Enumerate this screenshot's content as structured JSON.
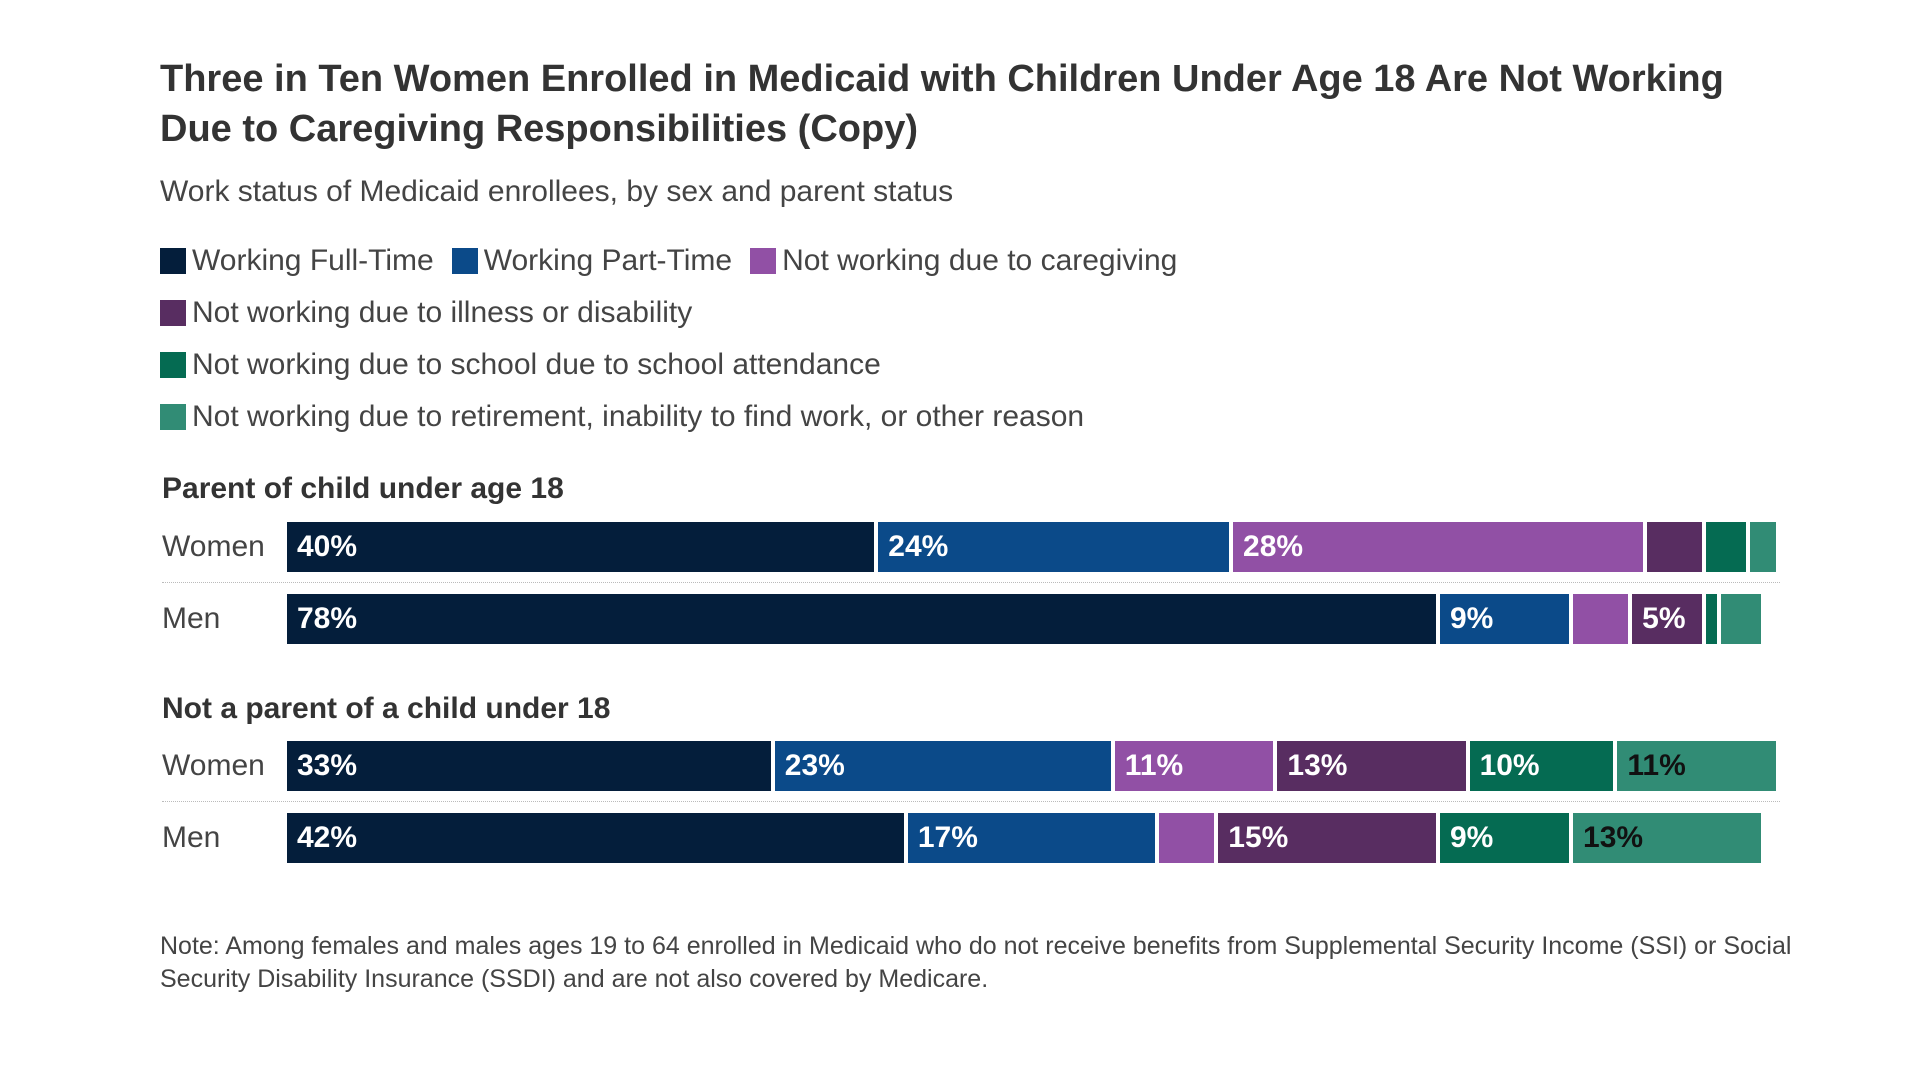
{
  "chart_data": {
    "type": "bar",
    "orientation": "horizontal",
    "stacked": true,
    "title": "Three in Ten Women Enrolled in Medicaid with Children Under Age 18 Are Not Working Due to Caregiving Responsibilities (Copy)",
    "subtitle": "Work status of Medicaid enrollees, by sex and parent status",
    "legend_position": "top-left",
    "series": [
      {
        "name": "Working Full-Time",
        "color": "#041e3b"
      },
      {
        "name": "Working Part-Time",
        "color": "#0b4a89"
      },
      {
        "name": "Not working due to caregiving",
        "color": "#9150a5"
      },
      {
        "name": "Not working due to illness or disability",
        "color": "#582d61"
      },
      {
        "name": "Not working due to school due to school attendance",
        "color": "#056b52"
      },
      {
        "name": "Not working due to retirement, inability to find work, or other reason",
        "color": "#318c75"
      }
    ],
    "groups": [
      {
        "title": "Parent of child under age 18",
        "rows": [
          {
            "label": "Women",
            "values": [
              40,
              24,
              28,
              4,
              3,
              2
            ],
            "labels": [
              "40%",
              "24%",
              "28%",
              "",
              "",
              ""
            ]
          },
          {
            "label": "Men",
            "values": [
              78,
              9,
              4,
              5,
              1,
              3
            ],
            "labels": [
              "78%",
              "9%",
              "",
              "5%",
              "",
              ""
            ]
          }
        ]
      },
      {
        "title": "Not a parent of a child under 18",
        "rows": [
          {
            "label": "Women",
            "values": [
              33,
              23,
              11,
              13,
              10,
              11
            ],
            "labels": [
              "33%",
              "23%",
              "11%",
              "13%",
              "10%",
              "11%"
            ]
          },
          {
            "label": "Men",
            "values": [
              42,
              17,
              4,
              15,
              9,
              13
            ],
            "labels": [
              "42%",
              "17%",
              "",
              "15%",
              "9%",
              "13%"
            ]
          }
        ]
      }
    ],
    "xlim": [
      0,
      101
    ],
    "grid": false
  },
  "label_colors": {
    "light": "#ffffff",
    "dark": "#111111"
  },
  "note": "Note: Among females and males ages 19 to 64 enrolled in Medicaid who do not receive benefits from Supplemental Security Income (SSI) or Social Security Disability Insurance (SSDI) and are not also covered by Medicare."
}
